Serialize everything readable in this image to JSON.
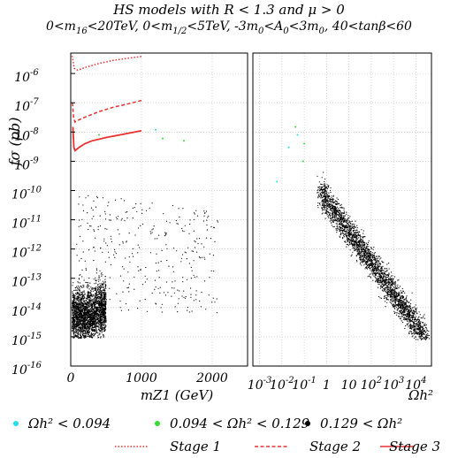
{
  "title": "HS models with R < 1.3 and μ > 0",
  "subtitle": "0<m16<20TeV, 0<m1/2<5TeV, -3m0<A0<3m0, 40<tanβ<60",
  "chart_data": {
    "type": "scatter",
    "title": "HS models with R < 1.3 and μ > 0",
    "ylabel": "fσ (pb)",
    "yscale": "log",
    "ylim": [
      1e-16,
      5e-06
    ],
    "ytick_labels": [
      "10^-6",
      "10^-7",
      "10^-8",
      "10^-9",
      "10^-10",
      "10^-11",
      "10^-12",
      "10^-13",
      "10^-14",
      "10^-15",
      "10^-16"
    ],
    "grid": true,
    "panels": [
      {
        "name": "left",
        "xlabel": "m_Z1 (GeV)",
        "xscale": "linear",
        "xlim": [
          0,
          2500
        ],
        "xtick_labels": [
          "0",
          "1000",
          "2000"
        ],
        "curves": [
          {
            "name": "Stage 1",
            "style": "dotted",
            "color": "#e83030",
            "x": [
              20,
              50,
              100,
              200,
              400,
              600,
              800,
              1000
            ],
            "y": [
              4e-06,
              1.5e-06,
              1.3e-06,
              1.6e-06,
              2.2e-06,
              2.8e-06,
              3.3e-06,
              3.8e-06
            ]
          },
          {
            "name": "Stage 2",
            "style": "dashed",
            "color": "#e83030",
            "x": [
              25,
              40,
              60,
              100,
              200,
              400,
              600,
              800,
              1000
            ],
            "y": [
              1e-07,
              3e-08,
              2.2e-08,
              2.5e-08,
              3.2e-08,
              5e-08,
              7e-08,
              9e-08,
              1.2e-07
            ]
          },
          {
            "name": "Stage 3",
            "style": "solid",
            "color": "#e83030",
            "x": [
              30,
              45,
              60,
              80,
              120,
              200,
              300,
              500,
              700,
              1000
            ],
            "y": [
              1.5e-08,
              3e-09,
              2.3e-09,
              2.5e-09,
              3e-09,
              4e-09,
              5e-09,
              6.5e-09,
              8e-09,
              1.1e-08
            ]
          }
        ]
      },
      {
        "name": "right",
        "xlabel": "Ωh²",
        "xscale": "log",
        "xlim": [
          0.0005,
          50000
        ],
        "xtick_labels": [
          "10^-3",
          "10^-2",
          "10^-1",
          "1",
          "10",
          "10^2",
          "10^3",
          "10^4"
        ]
      }
    ],
    "scatter_groups": [
      {
        "name": "Ωh² < 0.094",
        "color": "#22e0e8"
      },
      {
        "name": "0.094 < Ωh² < 0.129",
        "color": "#33dd33"
      },
      {
        "name": "0.129 < Ωh²",
        "color": "#000000"
      }
    ],
    "legend": {
      "placement": "bottom",
      "markers": [
        "Ωh² < 0.094",
        "0.094 < Ωh² < 0.129",
        "0.129 < Ωh²"
      ],
      "lines": [
        "Stage 1",
        "Stage 2",
        "Stage 3"
      ]
    }
  }
}
